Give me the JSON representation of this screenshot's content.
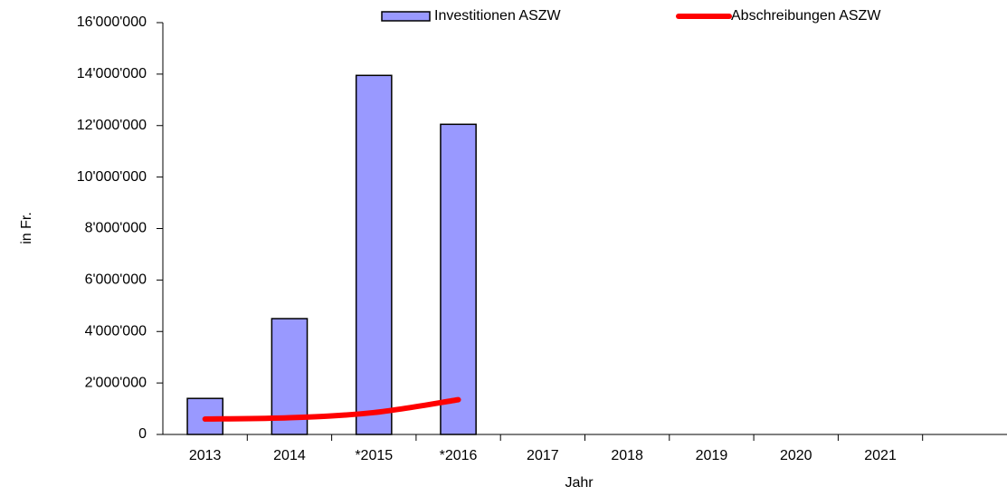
{
  "chart_data": {
    "type": "bar",
    "x_label": "Jahr",
    "y_label": "in Fr.",
    "categories": [
      "2013",
      "2014",
      "*2015",
      "*2016",
      "2017",
      "2018",
      "2019",
      "2020",
      "2021",
      null
    ],
    "series": [
      {
        "name": "Investitionen ASZW",
        "type": "bar",
        "color": "#9999ff",
        "values": [
          1400000,
          4500000,
          13950000,
          12050000,
          null,
          null,
          null,
          null,
          null,
          null
        ]
      },
      {
        "name": "Abschreibungen ASZW",
        "type": "line",
        "color": "#ff0000",
        "values": [
          600000,
          650000,
          850000,
          1350000,
          null,
          null,
          null,
          null,
          null,
          null
        ]
      }
    ],
    "ylim": [
      0,
      16000000
    ],
    "yticks": [
      {
        "value": 0,
        "label": "0"
      },
      {
        "value": 2000000,
        "label": "2'000'000"
      },
      {
        "value": 4000000,
        "label": "4'000'000"
      },
      {
        "value": 6000000,
        "label": "6'000'000"
      },
      {
        "value": 8000000,
        "label": "8'000'000"
      },
      {
        "value": 10000000,
        "label": "10'000'000"
      },
      {
        "value": 12000000,
        "label": "12'000'000"
      },
      {
        "value": 14000000,
        "label": "14'000'000"
      },
      {
        "value": 16000000,
        "label": "16'000'000"
      }
    ],
    "legend": "top",
    "grid": false
  }
}
